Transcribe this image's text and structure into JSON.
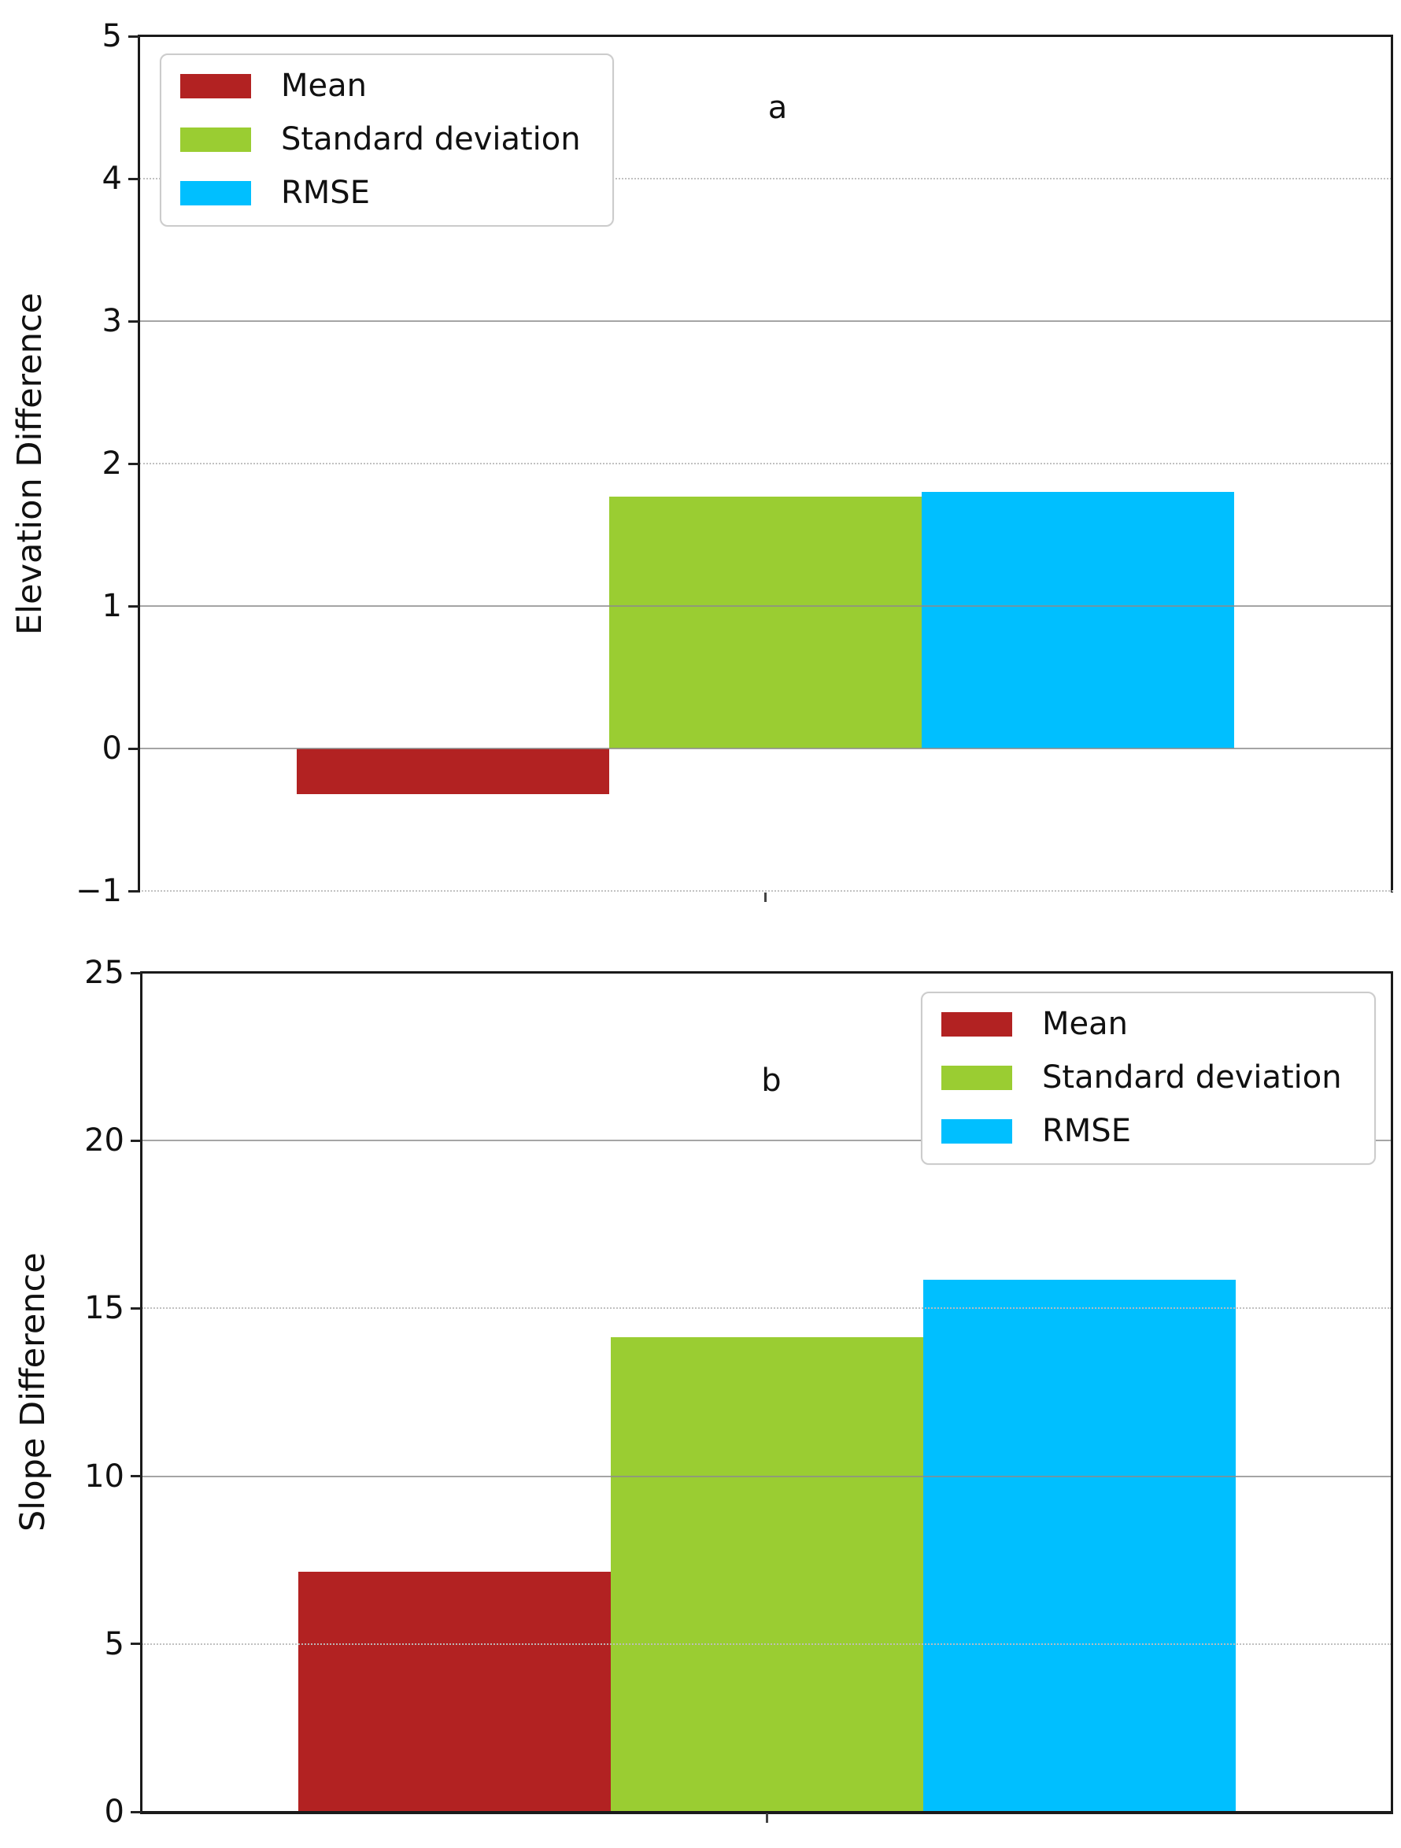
{
  "figure": {
    "background": "#ffffff",
    "palette": {
      "mean": "#b22222",
      "standard_deviation": "#9acd32",
      "rmse": "#00bfff"
    }
  },
  "chart_data": [
    {
      "type": "bar",
      "panel_label": "a",
      "title": "",
      "xlabel": "",
      "ylabel": "Elevation Difference",
      "categories": [
        "Mean",
        "Standard deviation",
        "RMSE"
      ],
      "values": [
        -0.32,
        1.77,
        1.8
      ],
      "colors": [
        "#b22222",
        "#9acd32",
        "#00bfff"
      ],
      "ylim": [
        -1,
        5
      ],
      "grid": true,
      "yticks": [
        {
          "value": -1,
          "label": "−1",
          "line": "spine-light"
        },
        {
          "value": 0,
          "label": "0",
          "line": "solid"
        },
        {
          "value": 1,
          "label": "1",
          "line": "solid"
        },
        {
          "value": 2,
          "label": "2",
          "line": "dotted"
        },
        {
          "value": 3,
          "label": "3",
          "line": "solid"
        },
        {
          "value": 4,
          "label": "4",
          "line": "dotted"
        },
        {
          "value": 5,
          "label": "5",
          "line": "spine-dark"
        }
      ],
      "legend": {
        "position": "top-left",
        "entries": [
          {
            "label": "Mean",
            "color": "#b22222"
          },
          {
            "label": "Standard deviation",
            "color": "#9acd32"
          },
          {
            "label": "RMSE",
            "color": "#00bfff"
          }
        ]
      }
    },
    {
      "type": "bar",
      "panel_label": "b",
      "title": "",
      "xlabel": "",
      "ylabel": "Slope Difference",
      "categories": [
        "Mean",
        "Standard deviation",
        "RMSE"
      ],
      "values": [
        7.15,
        14.15,
        15.85
      ],
      "colors": [
        "#b22222",
        "#9acd32",
        "#00bfff"
      ],
      "ylim": [
        0,
        25
      ],
      "grid": true,
      "yticks": [
        {
          "value": 0,
          "label": "0",
          "line": "spine-dark"
        },
        {
          "value": 5,
          "label": "5",
          "line": "dotted"
        },
        {
          "value": 10,
          "label": "10",
          "line": "solid"
        },
        {
          "value": 15,
          "label": "15",
          "line": "dotted"
        },
        {
          "value": 20,
          "label": "20",
          "line": "solid"
        },
        {
          "value": 25,
          "label": "25",
          "line": "spine-dark"
        }
      ],
      "legend": {
        "position": "top-right",
        "entries": [
          {
            "label": "Mean",
            "color": "#b22222"
          },
          {
            "label": "Standard deviation",
            "color": "#9acd32"
          },
          {
            "label": "RMSE",
            "color": "#00bfff"
          }
        ]
      }
    }
  ]
}
